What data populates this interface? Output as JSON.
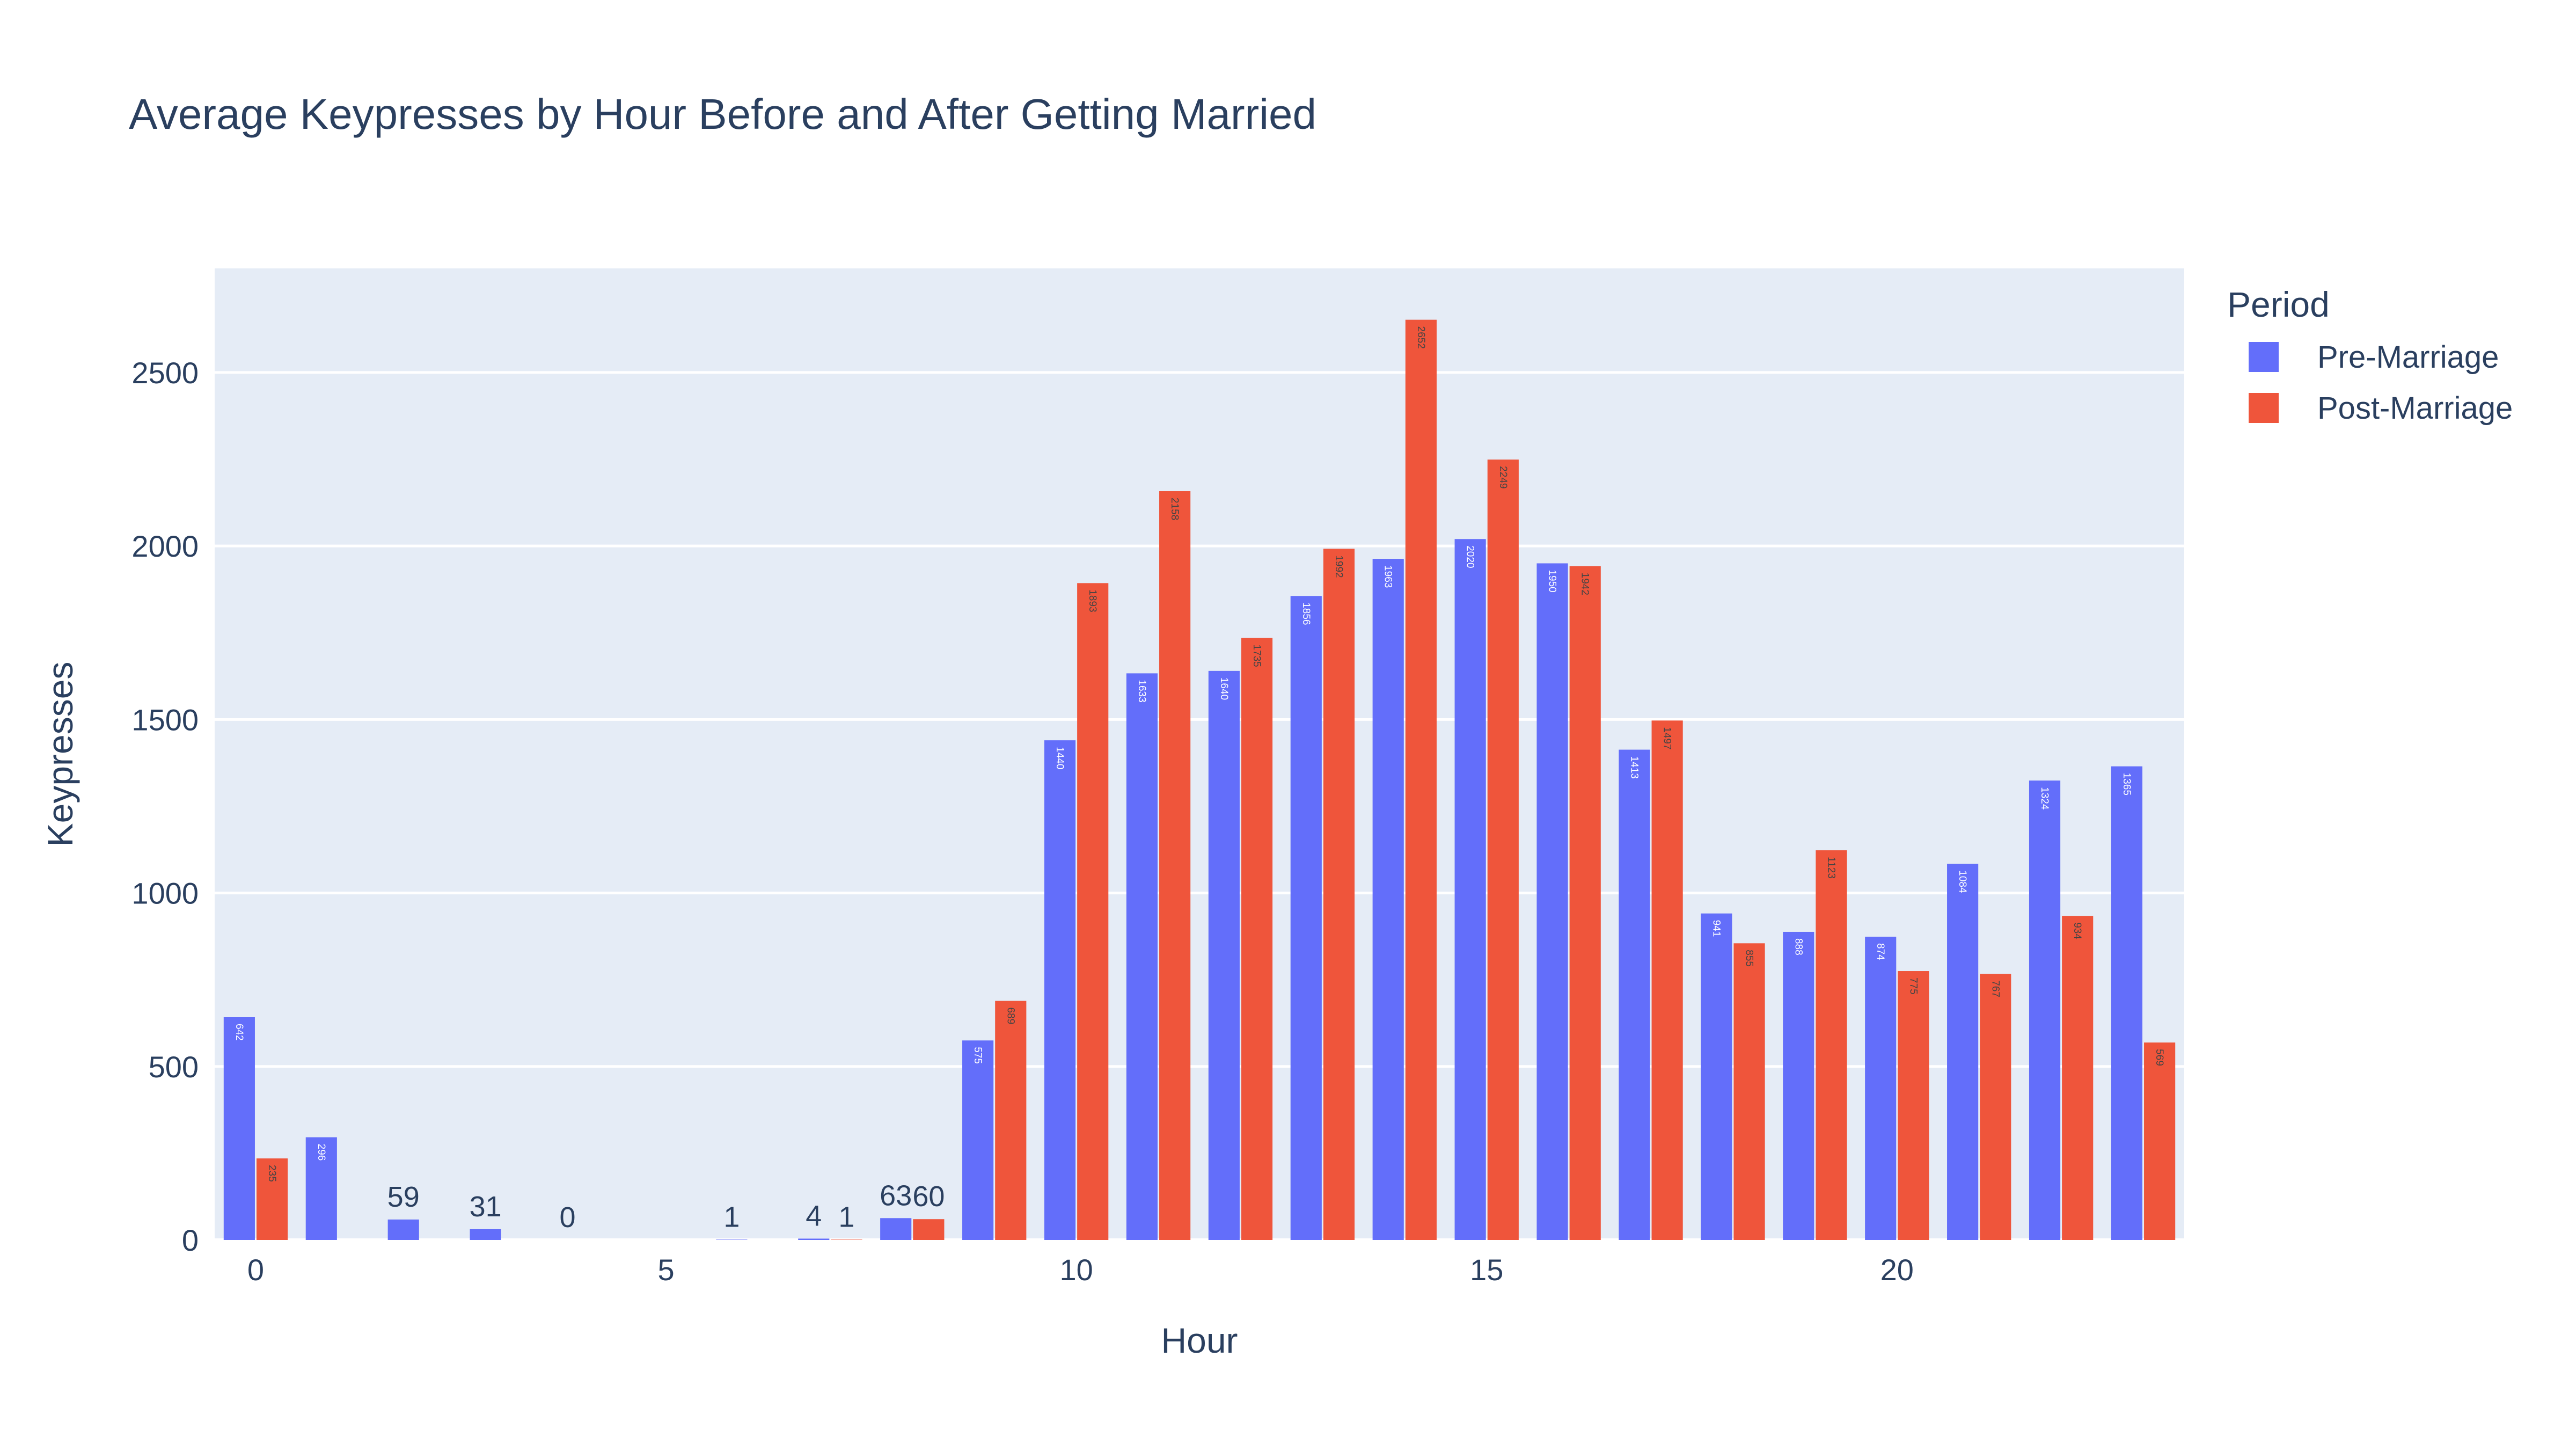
{
  "chart_data": {
    "type": "bar",
    "title": "Average Keypresses by Hour Before and After Getting Married",
    "xlabel": "Hour",
    "ylabel": "Keypresses",
    "x": [
      0,
      1,
      2,
      3,
      4,
      5,
      6,
      7,
      8,
      9,
      10,
      11,
      12,
      13,
      14,
      15,
      16,
      17,
      18,
      19,
      20,
      21,
      22,
      23
    ],
    "xticks": [
      "0",
      "5",
      "10",
      "15",
      "20"
    ],
    "yticks": [
      "0",
      "500",
      "1000",
      "1500",
      "2000",
      "2500"
    ],
    "ylim": [
      0,
      2800
    ],
    "xlim": [
      -0.5,
      23.5
    ],
    "grid": true,
    "legend": {
      "title": "Period",
      "position": "top-right"
    },
    "series": [
      {
        "name": "Pre-Marriage",
        "color": "#636efa",
        "values": [
          642,
          296,
          59,
          31,
          0,
          0,
          1,
          4,
          63,
          575,
          1440,
          1633,
          1640,
          1856,
          1963,
          2020,
          1950,
          1413,
          941,
          888,
          874,
          1084,
          1324,
          1365
        ],
        "labels": [
          "642",
          "296",
          "59",
          "31",
          "0",
          "",
          "1",
          "4",
          "63",
          "575",
          "1440",
          "1633",
          "1640",
          "1856",
          "1963",
          "2020",
          "1950",
          "1413",
          "941",
          "888",
          "874",
          "1084",
          "1324",
          "1365"
        ]
      },
      {
        "name": "Post-Marriage",
        "color": "#ef553b",
        "values": [
          235,
          0,
          0,
          0,
          0,
          0,
          0,
          1,
          60,
          689,
          1893,
          2158,
          1735,
          1992,
          2652,
          2249,
          1942,
          1497,
          855,
          1123,
          775,
          767,
          934,
          569
        ],
        "labels": [
          "235",
          "",
          "",
          "",
          "",
          "",
          "",
          "1",
          "60",
          "689",
          "1893",
          "2158",
          "1735",
          "1992",
          "2652",
          "2249",
          "1942",
          "1497",
          "855",
          "1123",
          "775",
          "767",
          "934",
          "569"
        ]
      }
    ]
  }
}
